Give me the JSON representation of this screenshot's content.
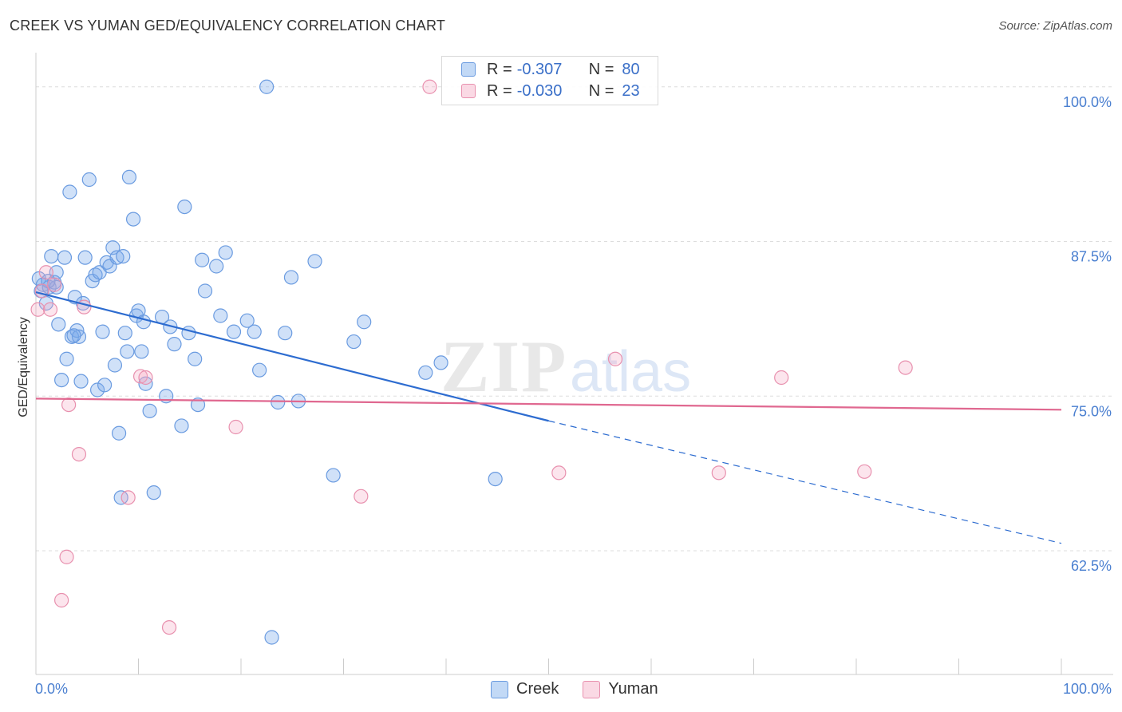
{
  "header": {
    "title": "CREEK VS YUMAN GED/EQUIVALENCY CORRELATION CHART",
    "source": "Source: ZipAtlas.com"
  },
  "watermark": {
    "zip": "ZIP",
    "atlas": "atlas"
  },
  "legend": {
    "rows": [
      {
        "r_label": "R =",
        "r_value": "-0.307",
        "n_label": "N =",
        "n_value": "80",
        "color": "#5b8fd8"
      },
      {
        "r_label": "R =",
        "r_value": "-0.030",
        "n_label": "N =",
        "n_value": "23",
        "color": "#e88aa8"
      }
    ]
  },
  "bottom_legend": {
    "creek": "Creek",
    "yuman": "Yuman"
  },
  "colors": {
    "creek_fill": "rgba(120,170,235,0.35)",
    "creek_stroke": "#6a9be0",
    "creek_line": "#2d6cd0",
    "yuman_fill": "rgba(245,170,195,0.30)",
    "yuman_stroke": "#e890ae",
    "yuman_line": "#e06890",
    "grid": "#dddddd",
    "tick_text": "#4a7fd0"
  },
  "chart_data": {
    "type": "scatter",
    "title": "CREEK VS YUMAN GED/EQUIVALENCY CORRELATION CHART",
    "xlabel": "",
    "ylabel": "GED/Equivalency",
    "xlim": [
      0,
      100
    ],
    "ylim": [
      52.5,
      102.5
    ],
    "x_tick_labels": [
      "0.0%",
      "100.0%"
    ],
    "y_ticks": [
      62.5,
      75.0,
      87.5,
      100.0
    ],
    "y_tick_labels": [
      "62.5%",
      "75.0%",
      "87.5%",
      "100.0%"
    ],
    "grid": true,
    "legend_position": "top-center",
    "series": [
      {
        "name": "Creek",
        "points": [
          [
            0.3,
            84.5
          ],
          [
            0.5,
            83.5
          ],
          [
            0.7,
            84.0
          ],
          [
            1.0,
            82.5
          ],
          [
            1.3,
            83.8
          ],
          [
            1.5,
            86.3
          ],
          [
            1.8,
            84.2
          ],
          [
            2.0,
            85.0
          ],
          [
            2.2,
            80.8
          ],
          [
            2.5,
            76.3
          ],
          [
            2.8,
            86.2
          ],
          [
            3.0,
            78.0
          ],
          [
            3.3,
            91.5
          ],
          [
            3.5,
            79.8
          ],
          [
            3.8,
            83.0
          ],
          [
            4.0,
            80.3
          ],
          [
            4.2,
            79.8
          ],
          [
            4.4,
            76.2
          ],
          [
            4.6,
            82.5
          ],
          [
            4.8,
            86.2
          ],
          [
            5.2,
            92.5
          ],
          [
            5.5,
            84.3
          ],
          [
            5.8,
            84.8
          ],
          [
            6.0,
            75.5
          ],
          [
            6.2,
            85.0
          ],
          [
            6.5,
            80.2
          ],
          [
            6.7,
            75.9
          ],
          [
            6.9,
            85.8
          ],
          [
            7.2,
            85.5
          ],
          [
            7.5,
            87.0
          ],
          [
            7.7,
            77.5
          ],
          [
            7.9,
            86.2
          ],
          [
            8.1,
            72.0
          ],
          [
            8.3,
            66.8
          ],
          [
            8.5,
            86.3
          ],
          [
            8.7,
            80.1
          ],
          [
            8.9,
            78.6
          ],
          [
            9.1,
            92.7
          ],
          [
            9.5,
            89.3
          ],
          [
            9.8,
            81.5
          ],
          [
            10.0,
            81.9
          ],
          [
            10.3,
            78.6
          ],
          [
            10.5,
            81.0
          ],
          [
            10.7,
            76.0
          ],
          [
            11.1,
            73.8
          ],
          [
            11.5,
            67.2
          ],
          [
            12.3,
            81.4
          ],
          [
            12.7,
            75.0
          ],
          [
            13.1,
            80.6
          ],
          [
            13.5,
            79.2
          ],
          [
            14.2,
            72.6
          ],
          [
            14.5,
            90.3
          ],
          [
            14.9,
            80.1
          ],
          [
            15.5,
            78.0
          ],
          [
            15.8,
            74.3
          ],
          [
            16.2,
            86.0
          ],
          [
            16.5,
            83.5
          ],
          [
            17.6,
            85.5
          ],
          [
            18.0,
            81.5
          ],
          [
            18.5,
            86.6
          ],
          [
            19.3,
            80.2
          ],
          [
            20.6,
            81.1
          ],
          [
            21.3,
            80.2
          ],
          [
            21.8,
            77.1
          ],
          [
            22.5,
            100.0
          ],
          [
            23.0,
            55.5
          ],
          [
            23.6,
            74.5
          ],
          [
            24.3,
            80.1
          ],
          [
            24.9,
            84.6
          ],
          [
            25.6,
            74.6
          ],
          [
            27.2,
            85.9
          ],
          [
            29.0,
            68.6
          ],
          [
            31.0,
            79.4
          ],
          [
            32.0,
            81.0
          ],
          [
            38.0,
            76.9
          ],
          [
            39.5,
            77.7
          ],
          [
            44.8,
            68.3
          ],
          [
            2.0,
            83.8
          ],
          [
            1.2,
            84.3
          ],
          [
            3.7,
            79.9
          ]
        ]
      },
      {
        "name": "Yuman",
        "points": [
          [
            0.2,
            82.0
          ],
          [
            0.6,
            83.5
          ],
          [
            1.0,
            85.0
          ],
          [
            1.4,
            82.0
          ],
          [
            1.8,
            84.0
          ],
          [
            2.5,
            58.5
          ],
          [
            3.0,
            62.0
          ],
          [
            3.2,
            74.3
          ],
          [
            4.2,
            70.3
          ],
          [
            4.7,
            82.2
          ],
          [
            9.0,
            66.8
          ],
          [
            10.2,
            76.6
          ],
          [
            10.7,
            76.5
          ],
          [
            13.0,
            56.3
          ],
          [
            19.5,
            72.5
          ],
          [
            31.7,
            66.9
          ],
          [
            38.4,
            100.0
          ],
          [
            51.0,
            68.8
          ],
          [
            56.5,
            78.0
          ],
          [
            66.6,
            68.8
          ],
          [
            72.7,
            76.5
          ],
          [
            80.8,
            68.9
          ],
          [
            84.8,
            77.3
          ]
        ]
      }
    ],
    "trend_lines": [
      {
        "series": "Creek",
        "x_start": 0,
        "y_start": 83.4,
        "x_solid_end": 50,
        "y_solid_end": 73.0,
        "x_end": 100,
        "y_end": 63.1,
        "dashed_after_solid": true
      },
      {
        "series": "Yuman",
        "x_start": 0,
        "y_start": 74.8,
        "x_end": 100,
        "y_end": 73.9
      }
    ]
  }
}
